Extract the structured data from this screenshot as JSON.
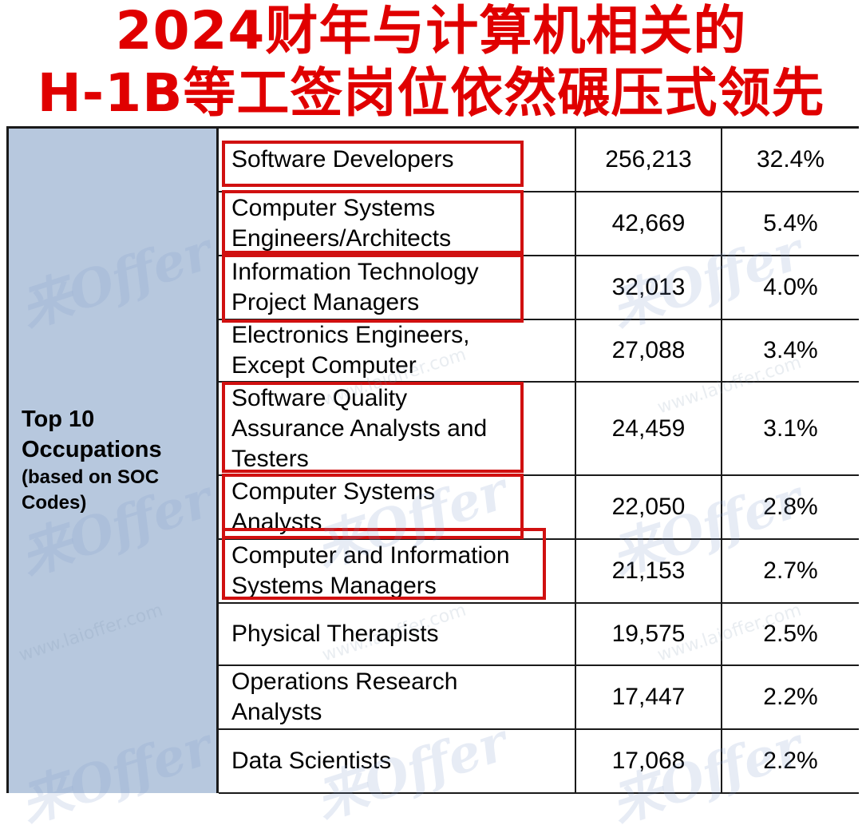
{
  "headline": {
    "line1": "2024财年与计算机相关的",
    "line2": "H-1B等工签岗位依然碾压式领先"
  },
  "table": {
    "side_label_main": "Top 10 Occupations",
    "side_label_sub": "(based on SOC Codes)",
    "rows": [
      {
        "occupation_line1": "Software Developers",
        "occupation_line2": "",
        "count": "256,213",
        "percent": "32.4%",
        "highlighted": true
      },
      {
        "occupation_line1": "Computer Systems",
        "occupation_line2": "Engineers/Architects",
        "count": "42,669",
        "percent": "5.4%",
        "highlighted": true
      },
      {
        "occupation_line1": "Information Technology",
        "occupation_line2": "Project Managers",
        "count": "32,013",
        "percent": "4.0%",
        "highlighted": true
      },
      {
        "occupation_line1": "Electronics Engineers,",
        "occupation_line2": "Except Computer",
        "count": "27,088",
        "percent": "3.4%",
        "highlighted": false
      },
      {
        "occupation_line1": "Software Quality",
        "occupation_line2": "Assurance Analysts and",
        "occupation_line3": "Testers",
        "count": "24,459",
        "percent": "3.1%",
        "highlighted": true
      },
      {
        "occupation_line1": "Computer Systems",
        "occupation_line2": "Analysts",
        "count": "22,050",
        "percent": "2.8%",
        "highlighted": true
      },
      {
        "occupation_line1": "Computer and Information",
        "occupation_line2": "Systems Managers",
        "count": "21,153",
        "percent": "2.7%",
        "highlighted": true
      },
      {
        "occupation_line1": "Physical Therapists",
        "occupation_line2": "",
        "count": "19,575",
        "percent": "2.5%",
        "highlighted": false
      },
      {
        "occupation_line1": "Operations Research",
        "occupation_line2": "Analysts",
        "count": "17,447",
        "percent": "2.2%",
        "highlighted": false
      },
      {
        "occupation_line1": "Data Scientists",
        "occupation_line2": "",
        "count": "17,068",
        "percent": "2.2%",
        "highlighted": false
      }
    ]
  },
  "watermark": {
    "brand": "来Offer",
    "url": "www.laioffer.com"
  },
  "colors": {
    "headline": "#e00000",
    "side_cell_bg": "#b7c8de",
    "highlight_border": "#d01010"
  }
}
